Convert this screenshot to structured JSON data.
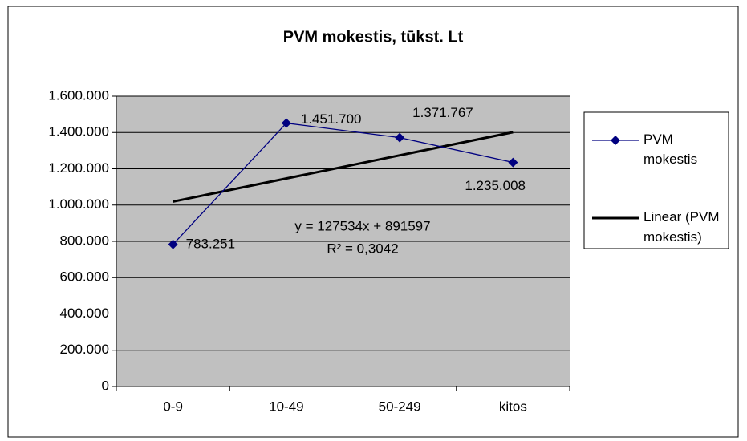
{
  "chart_data": {
    "type": "line",
    "title": "PVM mokestis, tūkst. Lt",
    "categories": [
      "0-9",
      "10-49",
      "50-249",
      "kitos"
    ],
    "series": [
      {
        "name": "PVM mokestis",
        "color": "#000080",
        "values": [
          783251,
          1451700,
          1371767,
          1235008
        ],
        "value_labels": [
          "783.251",
          "1.451.700",
          "1.371.767",
          "1.235.008"
        ]
      }
    ],
    "trendline": {
      "name": "Linear (PVM mokestis)",
      "color": "#000000",
      "slope": 127534,
      "intercept": 891597,
      "equation": "y = 127534x + 891597",
      "r2_label": "R² = 0,3042"
    },
    "ylim": [
      0,
      1600000
    ],
    "yticks": [
      0,
      {
        "value": 200000,
        "label": "200.000"
      },
      {
        "value": 400000,
        "label": "400.000"
      },
      {
        "value": 600000,
        "label": "600.000"
      },
      {
        "value": 800000,
        "label": "800.000"
      },
      {
        "value": 1000000,
        "label": "1.000.000"
      },
      {
        "value": 1200000,
        "label": "1.200.000"
      },
      {
        "value": 1400000,
        "label": "1.400.000"
      },
      {
        "value": 1600000,
        "label": "1.600.000"
      }
    ],
    "grid": true,
    "legend": "right",
    "plot_background": "#c0c0c0"
  }
}
